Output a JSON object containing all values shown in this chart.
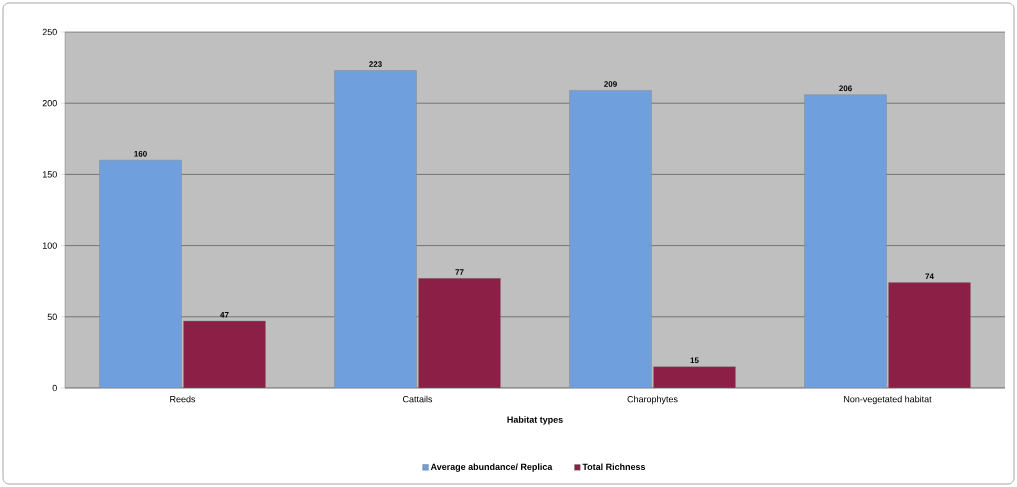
{
  "chart_data": {
    "type": "bar",
    "xlabel": "Habitat types",
    "categories": [
      "Reeds",
      "Cattails",
      "Charophytes",
      "Non-vegetated habitat"
    ],
    "series": [
      {
        "name": "Average abundance/ Replica",
        "color": "#6f9fdc",
        "values": [
          160,
          223,
          209,
          206
        ]
      },
      {
        "name": "Total Richness",
        "color": "#8b1f45",
        "values": [
          47,
          77,
          15,
          74
        ]
      }
    ],
    "ylim": [
      0,
      250
    ],
    "yticks": [
      0,
      50,
      100,
      150,
      200,
      250
    ],
    "grid": "y",
    "legend": "bottom",
    "data_labels": true
  }
}
